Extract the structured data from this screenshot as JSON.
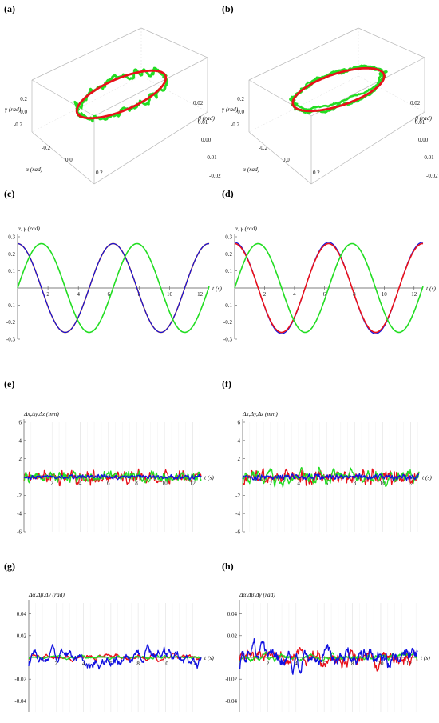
{
  "panels": [
    "(a)",
    "(b)",
    "(c)",
    "(d)",
    "(e)",
    "(f)",
    "(g)",
    "(h)"
  ],
  "colors": {
    "red": "#e8101a",
    "green": "#22dd22",
    "blue": "#1010e0",
    "orange": "#e06a10",
    "grid": "#d6d6d6",
    "box": "#b8b8b8"
  },
  "chart_data": [
    {
      "panel": "(a)",
      "type": "line3d",
      "axes": {
        "alpha": "α (rad)",
        "beta": "β (rad)",
        "gamma": "γ (rad)"
      },
      "alpha_ticks": [
        "-0.2",
        "0.0",
        "0.2"
      ],
      "beta_ticks": [
        "0.02",
        "0.01",
        "0.00",
        "-0.01",
        "-0.02"
      ],
      "gamma_ticks": [
        "0.2",
        "0.0",
        "-0.2"
      ],
      "series": [
        {
          "color": "red",
          "shape": "ellipse"
        },
        {
          "color": "green",
          "shape": "noisy ellipse"
        }
      ]
    },
    {
      "panel": "(b)",
      "type": "line3d",
      "axes": {
        "alpha": "α (rad)",
        "beta": "β (rad)",
        "gamma": "γ (rad)"
      },
      "alpha_ticks": [
        "-0.2",
        "0.0",
        "0.2"
      ],
      "beta_ticks": [
        "0.02",
        "0.01",
        "0.00",
        "-0.01",
        "-0.02"
      ],
      "gamma_ticks": [
        "0.2",
        "0.0",
        "-0.2"
      ],
      "series": [
        {
          "color": "red",
          "shape": "ellipse"
        },
        {
          "color": "green",
          "shape": "noisy ellipse"
        }
      ]
    },
    {
      "panel": "(c)",
      "type": "line",
      "ylabel": "α, γ (rad)",
      "xlabel": "t (s)",
      "xlim": [
        0,
        12.6
      ],
      "ylim": [
        -0.3,
        0.3
      ],
      "xticks": [
        2,
        4,
        6,
        8,
        10,
        12
      ],
      "yticks": [
        0.3,
        0.2,
        0.1,
        -0.1,
        -0.2,
        -0.3
      ],
      "series": [
        {
          "color": "orange",
          "function": "0.26*cos(t)"
        },
        {
          "color": "blue",
          "function": "0.26*cos(t)"
        },
        {
          "color": "green",
          "function": "0.26*sin(t)"
        }
      ]
    },
    {
      "panel": "(d)",
      "type": "line",
      "ylabel": "α, γ (rad)",
      "xlabel": "t (s)",
      "xlim": [
        0,
        12.6
      ],
      "ylim": [
        -0.3,
        0.3
      ],
      "xticks": [
        2,
        4,
        6,
        8,
        10,
        12
      ],
      "yticks": [
        0.3,
        0.2,
        0.1,
        -0.1,
        -0.2,
        -0.3
      ],
      "series": [
        {
          "color": "blue",
          "function": "0.26*cos(t)"
        },
        {
          "color": "red",
          "function": "0.26*cos(t)"
        },
        {
          "color": "green",
          "function": "0.26*sin(t)"
        }
      ]
    },
    {
      "panel": "(e)",
      "type": "line",
      "ylabel": "Δx,Δy,Δz (mm)",
      "xlabel": "t (s)",
      "xlim": [
        0,
        12.6
      ],
      "ylim": [
        -6,
        6
      ],
      "xticks": [
        2,
        4,
        6,
        8,
        10,
        12
      ],
      "yticks": [
        6,
        4,
        2,
        -2,
        -4,
        -6
      ],
      "series": [
        {
          "color": "red",
          "noise_amplitude": 0.45
        },
        {
          "color": "green",
          "noise_amplitude": 0.35
        },
        {
          "color": "blue",
          "noise_amplitude": 0.15
        }
      ]
    },
    {
      "panel": "(f)",
      "type": "line",
      "ylabel": "Δx,Δy,Δz (mm)",
      "xlabel": "t (s)",
      "xlim": [
        0,
        12.6
      ],
      "ylim": [
        -6,
        6
      ],
      "xticks": [
        2,
        4,
        6,
        8,
        10,
        12
      ],
      "yticks": [
        6,
        4,
        2,
        -2,
        -4,
        -6
      ],
      "series": [
        {
          "color": "red",
          "noise_amplitude": 0.5
        },
        {
          "color": "green",
          "noise_amplitude": 0.9
        },
        {
          "color": "blue",
          "noise_amplitude": 0.2
        }
      ]
    },
    {
      "panel": "(g)",
      "type": "line",
      "ylabel": "Δα,Δβ,Δγ (rad)",
      "xlabel": "t (s)",
      "xlim": [
        0,
        12.6
      ],
      "ylim": [
        -0.05,
        0.05
      ],
      "xticks": [
        2,
        4,
        6,
        8,
        10,
        12
      ],
      "yticks": [
        0.04,
        0.02,
        -0.02,
        -0.04
      ],
      "series": [
        {
          "color": "red",
          "noise_amplitude": 0.003
        },
        {
          "color": "green",
          "noise_amplitude": 0.002
        },
        {
          "color": "blue",
          "noise_amplitude": 0.008
        }
      ]
    },
    {
      "panel": "(h)",
      "type": "line",
      "ylabel": "Δα,Δβ,Δγ (rad)",
      "xlabel": "t (s)",
      "xlim": [
        0,
        12.6
      ],
      "ylim": [
        -0.05,
        0.05
      ],
      "xticks": [
        2,
        4,
        6,
        8,
        10,
        12
      ],
      "yticks": [
        0.04,
        0.02,
        -0.02,
        -0.04
      ],
      "series": [
        {
          "color": "red",
          "noise_amplitude": 0.01
        },
        {
          "color": "green",
          "noise_amplitude": 0.004
        },
        {
          "color": "blue",
          "noise_amplitude": 0.012
        }
      ]
    }
  ]
}
